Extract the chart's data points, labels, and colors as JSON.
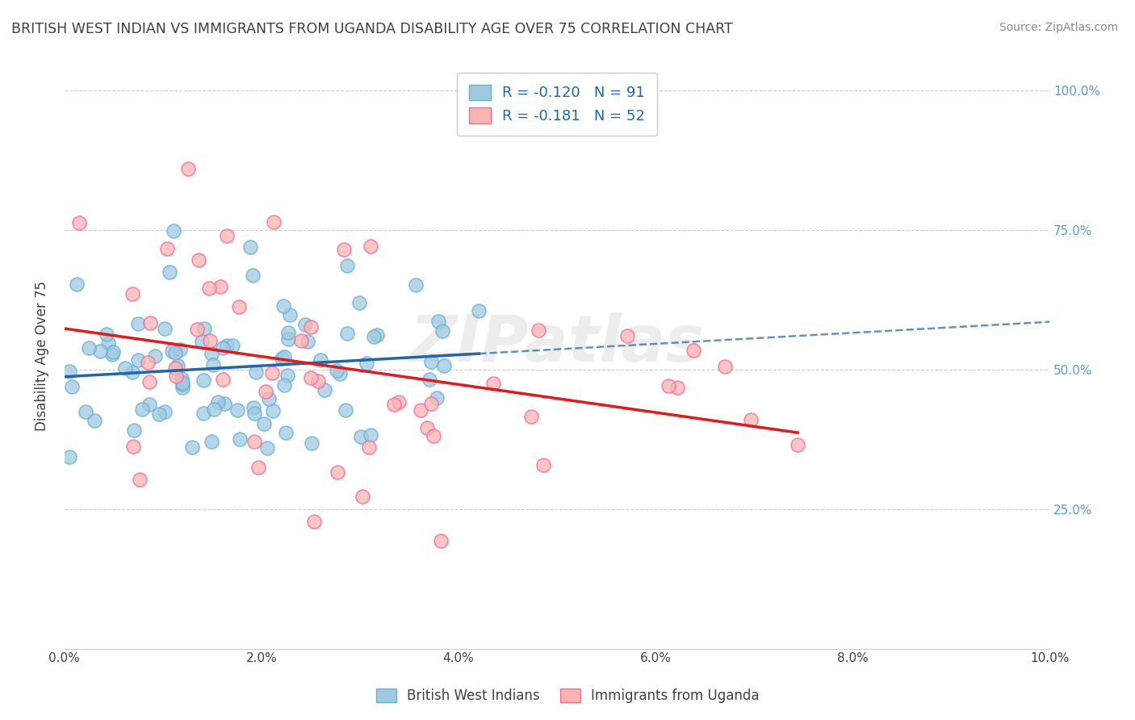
{
  "title": "BRITISH WEST INDIAN VS IMMIGRANTS FROM UGANDA DISABILITY AGE OVER 75 CORRELATION CHART",
  "source": "Source: ZipAtlas.com",
  "ylabel": "Disability Age Over 75",
  "xlim": [
    0.0,
    0.1
  ],
  "ylim": [
    0.0,
    1.05
  ],
  "xtick_labels": [
    "0.0%",
    "2.0%",
    "4.0%",
    "6.0%",
    "8.0%",
    "10.0%"
  ],
  "xtick_vals": [
    0.0,
    0.02,
    0.04,
    0.06,
    0.08,
    0.1
  ],
  "ytick_labels": [
    "25.0%",
    "50.0%",
    "75.0%",
    "100.0%"
  ],
  "ytick_vals": [
    0.25,
    0.5,
    0.75,
    1.0
  ],
  "blue_color": "#9ecae1",
  "pink_color": "#fbb4ae",
  "blue_edge": "#6baed6",
  "pink_edge": "#f768a1",
  "blue_line_color": "#2166ac",
  "pink_line_color": "#e31a1c",
  "blue_R": -0.12,
  "blue_N": 91,
  "pink_R": -0.181,
  "pink_N": 52,
  "legend_label_blue": "British West Indians",
  "legend_label_pink": "Immigrants from Uganda",
  "watermark": "ZIPatlas",
  "background_color": "#ffffff",
  "grid_color": "#cccccc",
  "title_color": "#404040",
  "axis_label_color": "#5b9bd5"
}
